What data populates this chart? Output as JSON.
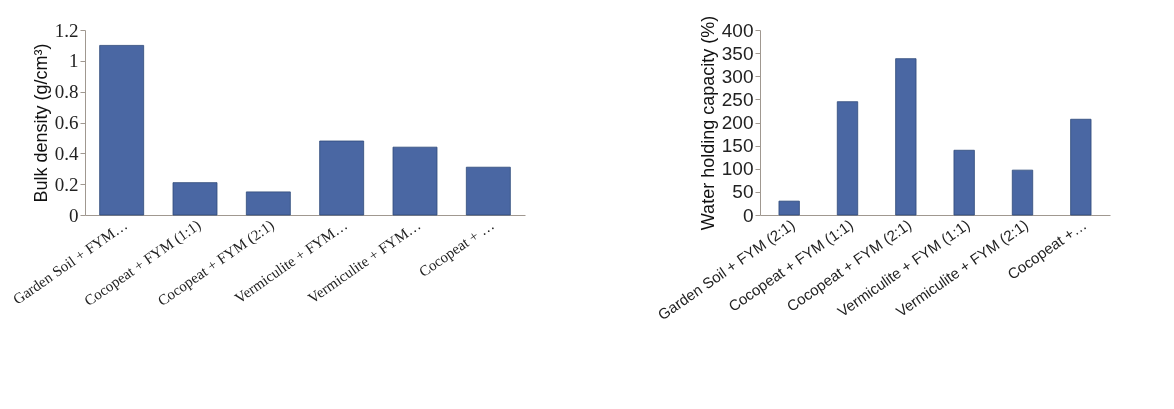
{
  "chart_data": [
    {
      "type": "bar",
      "ylabel": "Bulk density (g/cm³)",
      "categories": [
        "Garden Soil + FYM…",
        "Cocopeat + FYM (1:1)",
        "Cocopeat + FYM (2:1)",
        "Vermiculite + FYM…",
        "Vermiculite + FYM…",
        "Cocopeat + …"
      ],
      "values": [
        1.1,
        0.21,
        0.15,
        0.48,
        0.44,
        0.31
      ],
      "color": "#4a67a3",
      "ylim": [
        0,
        1.2
      ],
      "yticks": [
        0,
        0.2,
        0.4,
        0.6,
        0.8,
        1,
        1.2
      ],
      "grid": false
    },
    {
      "type": "bar",
      "ylabel": "Water holding capacity (%)",
      "categories": [
        "Garden Soil + FYM (2:1)",
        "Cocopeat + FYM (1:1)",
        "Cocopeat + FYM (2:1)",
        "Vermiculite + FYM (1:1)",
        "Vermiculite + FYM (2:1)",
        "Cocopeat +…"
      ],
      "values": [
        30,
        245,
        338,
        140,
        97,
        207
      ],
      "color": "#4a67a3",
      "ylim": [
        0,
        400
      ],
      "yticks": [
        0,
        50,
        100,
        150,
        200,
        250,
        300,
        350,
        400
      ],
      "grid": false
    }
  ]
}
